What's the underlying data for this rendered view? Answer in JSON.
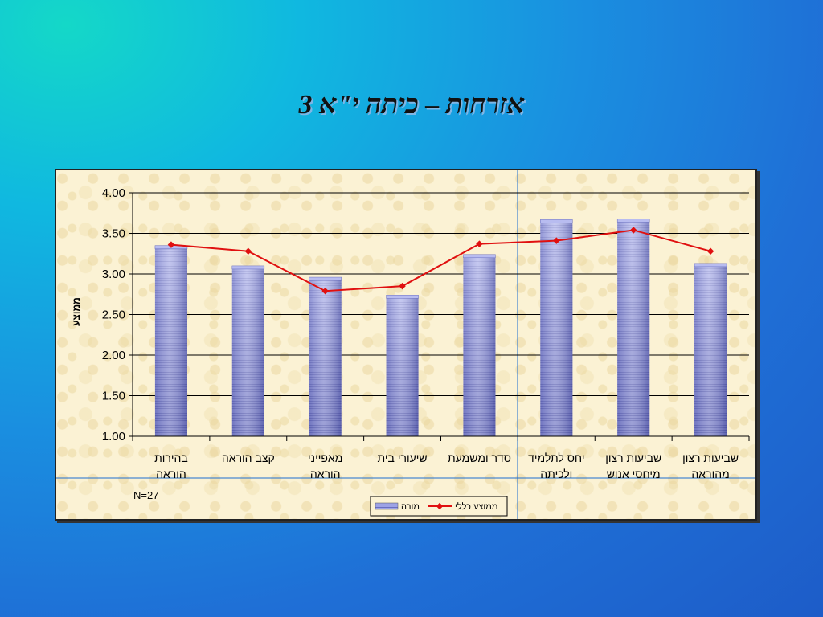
{
  "slide": {
    "title": "אזרחות – כיתה י\"א 3"
  },
  "chart_data": {
    "type": "bar",
    "ylabel": "ממוצע",
    "ylim": [
      1.0,
      4.0
    ],
    "yticks": [
      "1.00",
      "1.50",
      "2.00",
      "2.50",
      "3.00",
      "3.50",
      "4.00"
    ],
    "grid": true,
    "categories": [
      [
        "בהירות",
        "הוראה"
      ],
      [
        "קצב הוראה"
      ],
      [
        "מאפייני",
        "הוראה"
      ],
      [
        "שיעורי בית"
      ],
      [
        "סדר ומשמעת"
      ],
      [
        "יחס לתלמיד",
        "ולכיתה"
      ],
      [
        "שביעות רצון",
        "מיחסי אנוש"
      ],
      [
        "שביעות רצון",
        "מהוראה"
      ]
    ],
    "series": [
      {
        "name": "מורה",
        "type": "bar",
        "color": "#8a8fd8",
        "values": [
          3.33,
          3.08,
          2.94,
          2.72,
          3.22,
          3.65,
          3.66,
          3.11
        ]
      },
      {
        "name": "ממוצע כללי",
        "type": "line",
        "color": "#e01010",
        "values": [
          3.36,
          3.28,
          2.79,
          2.85,
          3.37,
          3.41,
          3.54,
          3.28
        ]
      }
    ],
    "annotation": "N=27",
    "legend_position": "bottom"
  }
}
